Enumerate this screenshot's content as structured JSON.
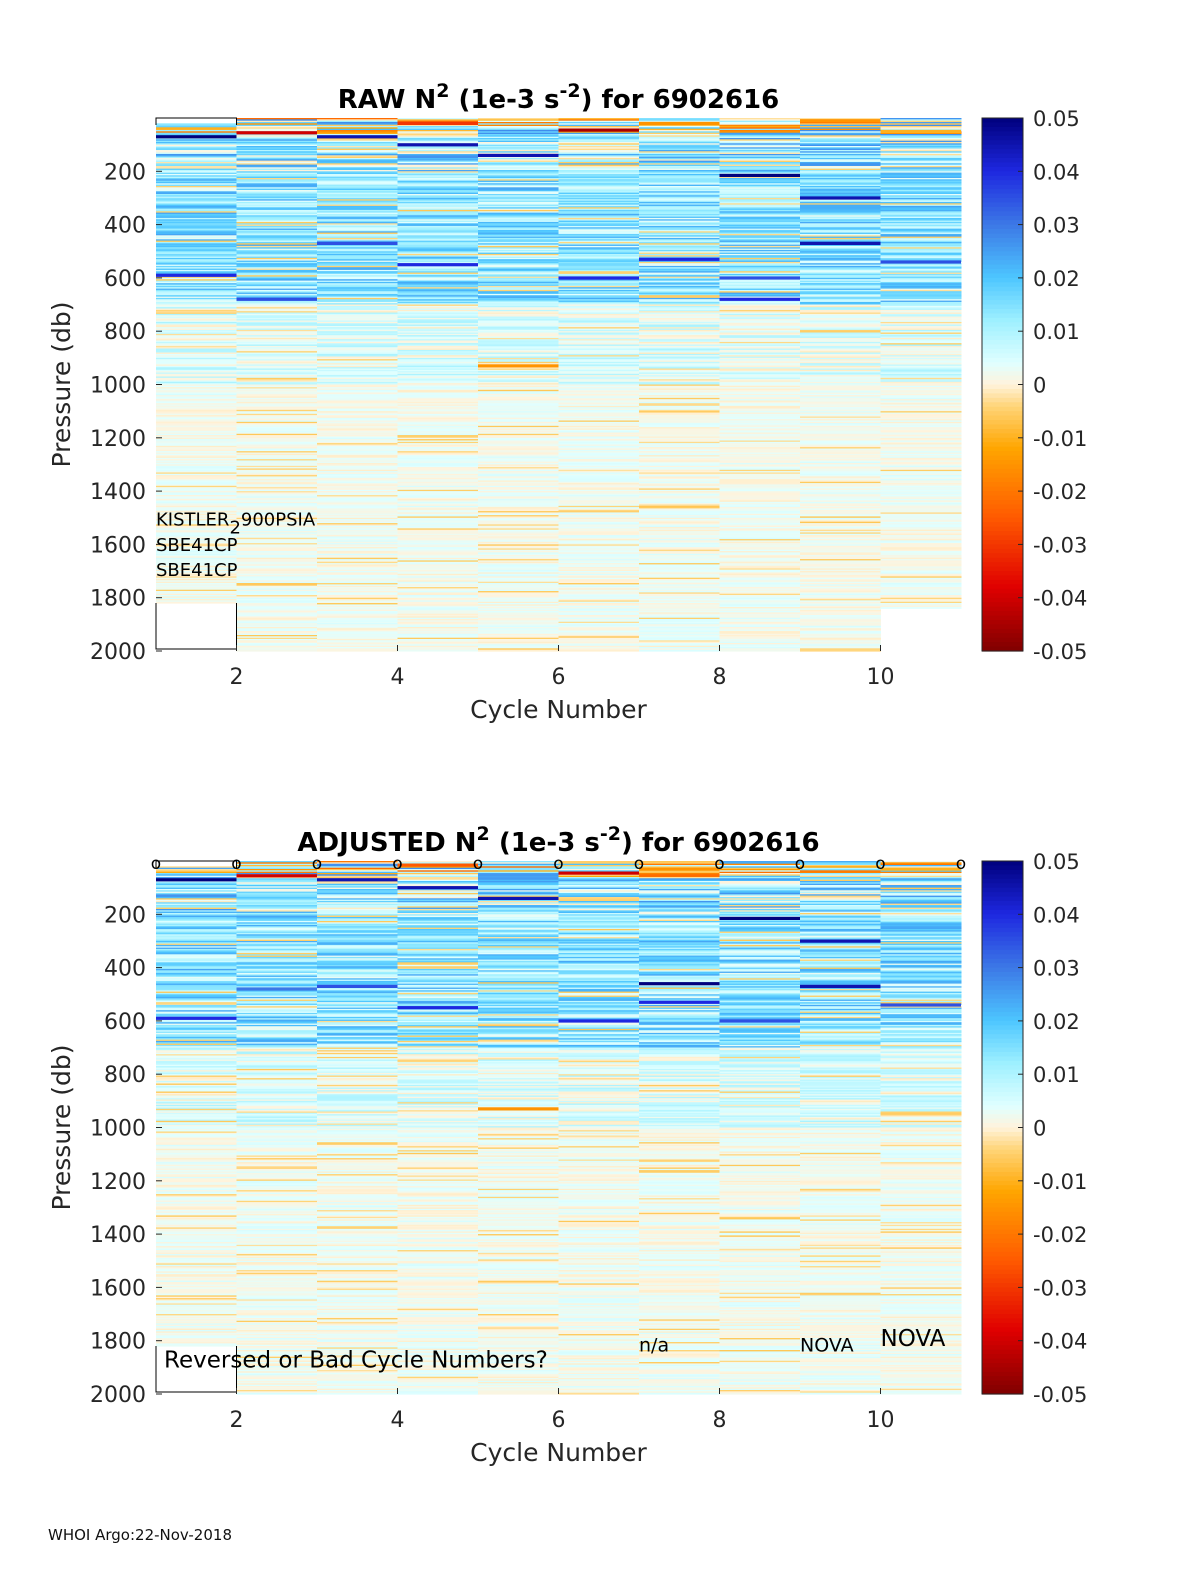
{
  "footer": "WHOI Argo:22-Nov-2018",
  "colors": {
    "background": "#ffffff",
    "axis": "#262626",
    "contour": "#000000",
    "colormap": [
      [
        0.0,
        "#800000"
      ],
      [
        0.12,
        "#e00000"
      ],
      [
        0.25,
        "#ff5a00"
      ],
      [
        0.38,
        "#ffa500"
      ],
      [
        0.46,
        "#ffd57a"
      ],
      [
        0.5,
        "#fff3dc"
      ],
      [
        0.54,
        "#e0ffff"
      ],
      [
        0.62,
        "#9ef0ff"
      ],
      [
        0.7,
        "#4dc6ff"
      ],
      [
        0.8,
        "#3c78e6"
      ],
      [
        0.9,
        "#1e28e0"
      ],
      [
        1.0,
        "#00007d"
      ]
    ]
  },
  "chart_data": [
    {
      "type": "heatmap",
      "id": "raw",
      "title": {
        "prefix": "RAW N",
        "sup1": "2",
        "mid": " (1e-3 s",
        "sup2": "-2",
        "suffix": ") for 6902616"
      },
      "xlabel": "Cycle Number",
      "ylabel": "Pressure (db)",
      "xlim": [
        1,
        11
      ],
      "ylim": [
        0,
        2000
      ],
      "x_ticks": [
        2,
        4,
        6,
        8,
        10
      ],
      "y_ticks": [
        200,
        400,
        600,
        800,
        1000,
        1200,
        1400,
        1600,
        1800,
        2000
      ],
      "colorbar": {
        "clim": [
          -0.05,
          0.05
        ],
        "ticks": [
          "0.05",
          "0.04",
          "0.03",
          "0.02",
          "0.01",
          "0",
          "-0.01",
          "-0.02",
          "-0.03",
          "-0.04",
          "-0.05"
        ]
      },
      "profile_max_pressure": [
        1820,
        2000,
        2000,
        2000,
        2000,
        2000,
        2000,
        2000,
        2000,
        1840
      ],
      "sensor_labels": [
        "KISTLER",
        "900PSIA",
        "SBE41CP",
        "SBE41CP"
      ],
      "sensor_subscript": "2",
      "bands": [
        {
          "cycle": 1,
          "p": 70,
          "v": 0.05
        },
        {
          "cycle": 1,
          "p": 590,
          "v": 0.04
        },
        {
          "cycle": 2,
          "p": 55,
          "v": -0.04
        },
        {
          "cycle": 2,
          "p": 680,
          "v": 0.035
        },
        {
          "cycle": 3,
          "p": 70,
          "v": 0.045
        },
        {
          "cycle": 3,
          "p": 470,
          "v": 0.035
        },
        {
          "cycle": 4,
          "p": 20,
          "v": -0.03
        },
        {
          "cycle": 4,
          "p": 100,
          "v": 0.045
        },
        {
          "cycle": 4,
          "p": 550,
          "v": 0.04
        },
        {
          "cycle": 5,
          "p": 140,
          "v": 0.045
        },
        {
          "cycle": 5,
          "p": 930,
          "v": -0.015
        },
        {
          "cycle": 6,
          "p": 45,
          "v": -0.045
        },
        {
          "cycle": 6,
          "p": 600,
          "v": 0.04
        },
        {
          "cycle": 7,
          "p": 20,
          "v": -0.015
        },
        {
          "cycle": 7,
          "p": 530,
          "v": 0.04
        },
        {
          "cycle": 8,
          "p": 215,
          "v": 0.05
        },
        {
          "cycle": 8,
          "p": 600,
          "v": 0.035
        },
        {
          "cycle": 8,
          "p": 680,
          "v": 0.04
        },
        {
          "cycle": 9,
          "p": 10,
          "v": -0.015
        },
        {
          "cycle": 9,
          "p": 300,
          "v": 0.045
        },
        {
          "cycle": 9,
          "p": 470,
          "v": 0.045
        },
        {
          "cycle": 10,
          "p": 50,
          "v": -0.01
        },
        {
          "cycle": 10,
          "p": 540,
          "v": 0.035
        }
      ]
    },
    {
      "type": "heatmap",
      "id": "adjusted",
      "title": {
        "prefix": "ADJUSTED N",
        "sup1": "2",
        "mid": " (1e-3 s",
        "sup2": "-2",
        "suffix": ") for 6902616"
      },
      "xlabel": "Cycle Number",
      "ylabel": "Pressure (db)",
      "xlim": [
        1,
        11
      ],
      "ylim": [
        0,
        2000
      ],
      "x_ticks": [
        2,
        4,
        6,
        8,
        10
      ],
      "y_ticks": [
        200,
        400,
        600,
        800,
        1000,
        1200,
        1400,
        1600,
        1800,
        2000
      ],
      "colorbar": {
        "clim": [
          -0.05,
          0.05
        ],
        "ticks": [
          "0.05",
          "0.04",
          "0.03",
          "0.02",
          "0.01",
          "0",
          "-0.01",
          "-0.02",
          "-0.03",
          "-0.04",
          "-0.05"
        ]
      },
      "profile_max_pressure": [
        1820,
        2000,
        2000,
        2000,
        2000,
        2000,
        2000,
        2000,
        2000,
        2000
      ],
      "surface_markers": [
        "o",
        "o",
        "o",
        "o",
        "o",
        "o",
        "o",
        "o",
        "o",
        "o",
        "o"
      ],
      "annotations": [
        {
          "text": "Reversed or Bad Cycle Numbers?",
          "x": 1.1,
          "p": 1900,
          "size": 23
        },
        {
          "text": "n/a",
          "x": 7.0,
          "p": 1840,
          "size": 19
        },
        {
          "text": "NOVA",
          "x": 9.0,
          "p": 1840,
          "size": 19
        },
        {
          "text": "NOVA",
          "x": 10.0,
          "p": 1820,
          "size": 23
        }
      ],
      "bands": [
        {
          "cycle": 1,
          "p": 70,
          "v": 0.05
        },
        {
          "cycle": 1,
          "p": 590,
          "v": 0.04
        },
        {
          "cycle": 2,
          "p": 55,
          "v": -0.04
        },
        {
          "cycle": 2,
          "p": 480,
          "v": 0.03
        },
        {
          "cycle": 3,
          "p": 70,
          "v": 0.045
        },
        {
          "cycle": 3,
          "p": 470,
          "v": 0.035
        },
        {
          "cycle": 4,
          "p": 15,
          "v": -0.025
        },
        {
          "cycle": 4,
          "p": 100,
          "v": 0.045
        },
        {
          "cycle": 4,
          "p": 550,
          "v": 0.04
        },
        {
          "cycle": 5,
          "p": 140,
          "v": 0.045
        },
        {
          "cycle": 5,
          "p": 930,
          "v": -0.015
        },
        {
          "cycle": 6,
          "p": 45,
          "v": -0.04
        },
        {
          "cycle": 6,
          "p": 600,
          "v": 0.04
        },
        {
          "cycle": 7,
          "p": 30,
          "v": -0.015
        },
        {
          "cycle": 7,
          "p": 460,
          "v": 0.05
        },
        {
          "cycle": 7,
          "p": 530,
          "v": 0.04
        },
        {
          "cycle": 8,
          "p": 215,
          "v": 0.05
        },
        {
          "cycle": 8,
          "p": 600,
          "v": 0.035
        },
        {
          "cycle": 9,
          "p": 300,
          "v": 0.045
        },
        {
          "cycle": 9,
          "p": 470,
          "v": 0.045
        },
        {
          "cycle": 10,
          "p": 30,
          "v": -0.01
        },
        {
          "cycle": 10,
          "p": 540,
          "v": 0.035
        }
      ]
    }
  ]
}
